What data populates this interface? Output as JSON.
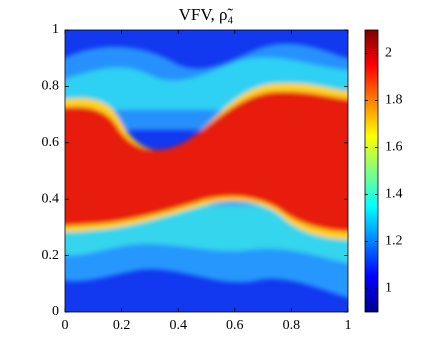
{
  "chart_data": {
    "type": "heatmap",
    "title": "VFV, ρ̃₄",
    "xlim": [
      0,
      1
    ],
    "ylim": [
      0,
      1
    ],
    "xticks": [
      0,
      0.2,
      0.4,
      0.6,
      0.8,
      1
    ],
    "yticks": [
      0,
      0.2,
      0.4,
      0.6,
      0.8,
      1
    ],
    "colormap": "jet",
    "clim": [
      0.9,
      2.1
    ],
    "colorbar_ticks": [
      1,
      1.2,
      1.4,
      1.6,
      1.8,
      2
    ]
  }
}
